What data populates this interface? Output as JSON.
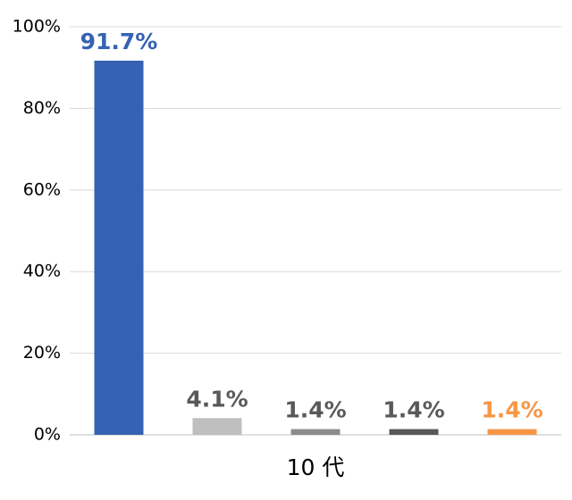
{
  "chart_data": {
    "type": "bar",
    "categories": [
      "10 代"
    ],
    "series": [
      {
        "color": "#3562b3",
        "label_color": "#3562b3",
        "values": [
          91.7
        ],
        "value_labels": [
          "91.7%"
        ]
      },
      {
        "color": "#bfbfbf",
        "label_color": "#595959",
        "values": [
          4.1
        ],
        "value_labels": [
          "4.1%"
        ]
      },
      {
        "color": "#8c8c8c",
        "label_color": "#595959",
        "values": [
          1.4
        ],
        "value_labels": [
          "1.4%"
        ]
      },
      {
        "color": "#595959",
        "label_color": "#595959",
        "values": [
          1.4
        ],
        "value_labels": [
          "1.4%"
        ]
      },
      {
        "color": "#f79646",
        "label_color": "#f79646",
        "values": [
          1.4
        ],
        "value_labels": [
          "1.4%"
        ]
      }
    ],
    "ylim": [
      0,
      100
    ],
    "yticks": [
      {
        "value": 0,
        "label": "0%"
      },
      {
        "value": 20,
        "label": "20%"
      },
      {
        "value": 40,
        "label": "40%"
      },
      {
        "value": 60,
        "label": "60%"
      },
      {
        "value": 80,
        "label": "80%"
      },
      {
        "value": 100,
        "label": "100%"
      }
    ],
    "grid": true
  }
}
